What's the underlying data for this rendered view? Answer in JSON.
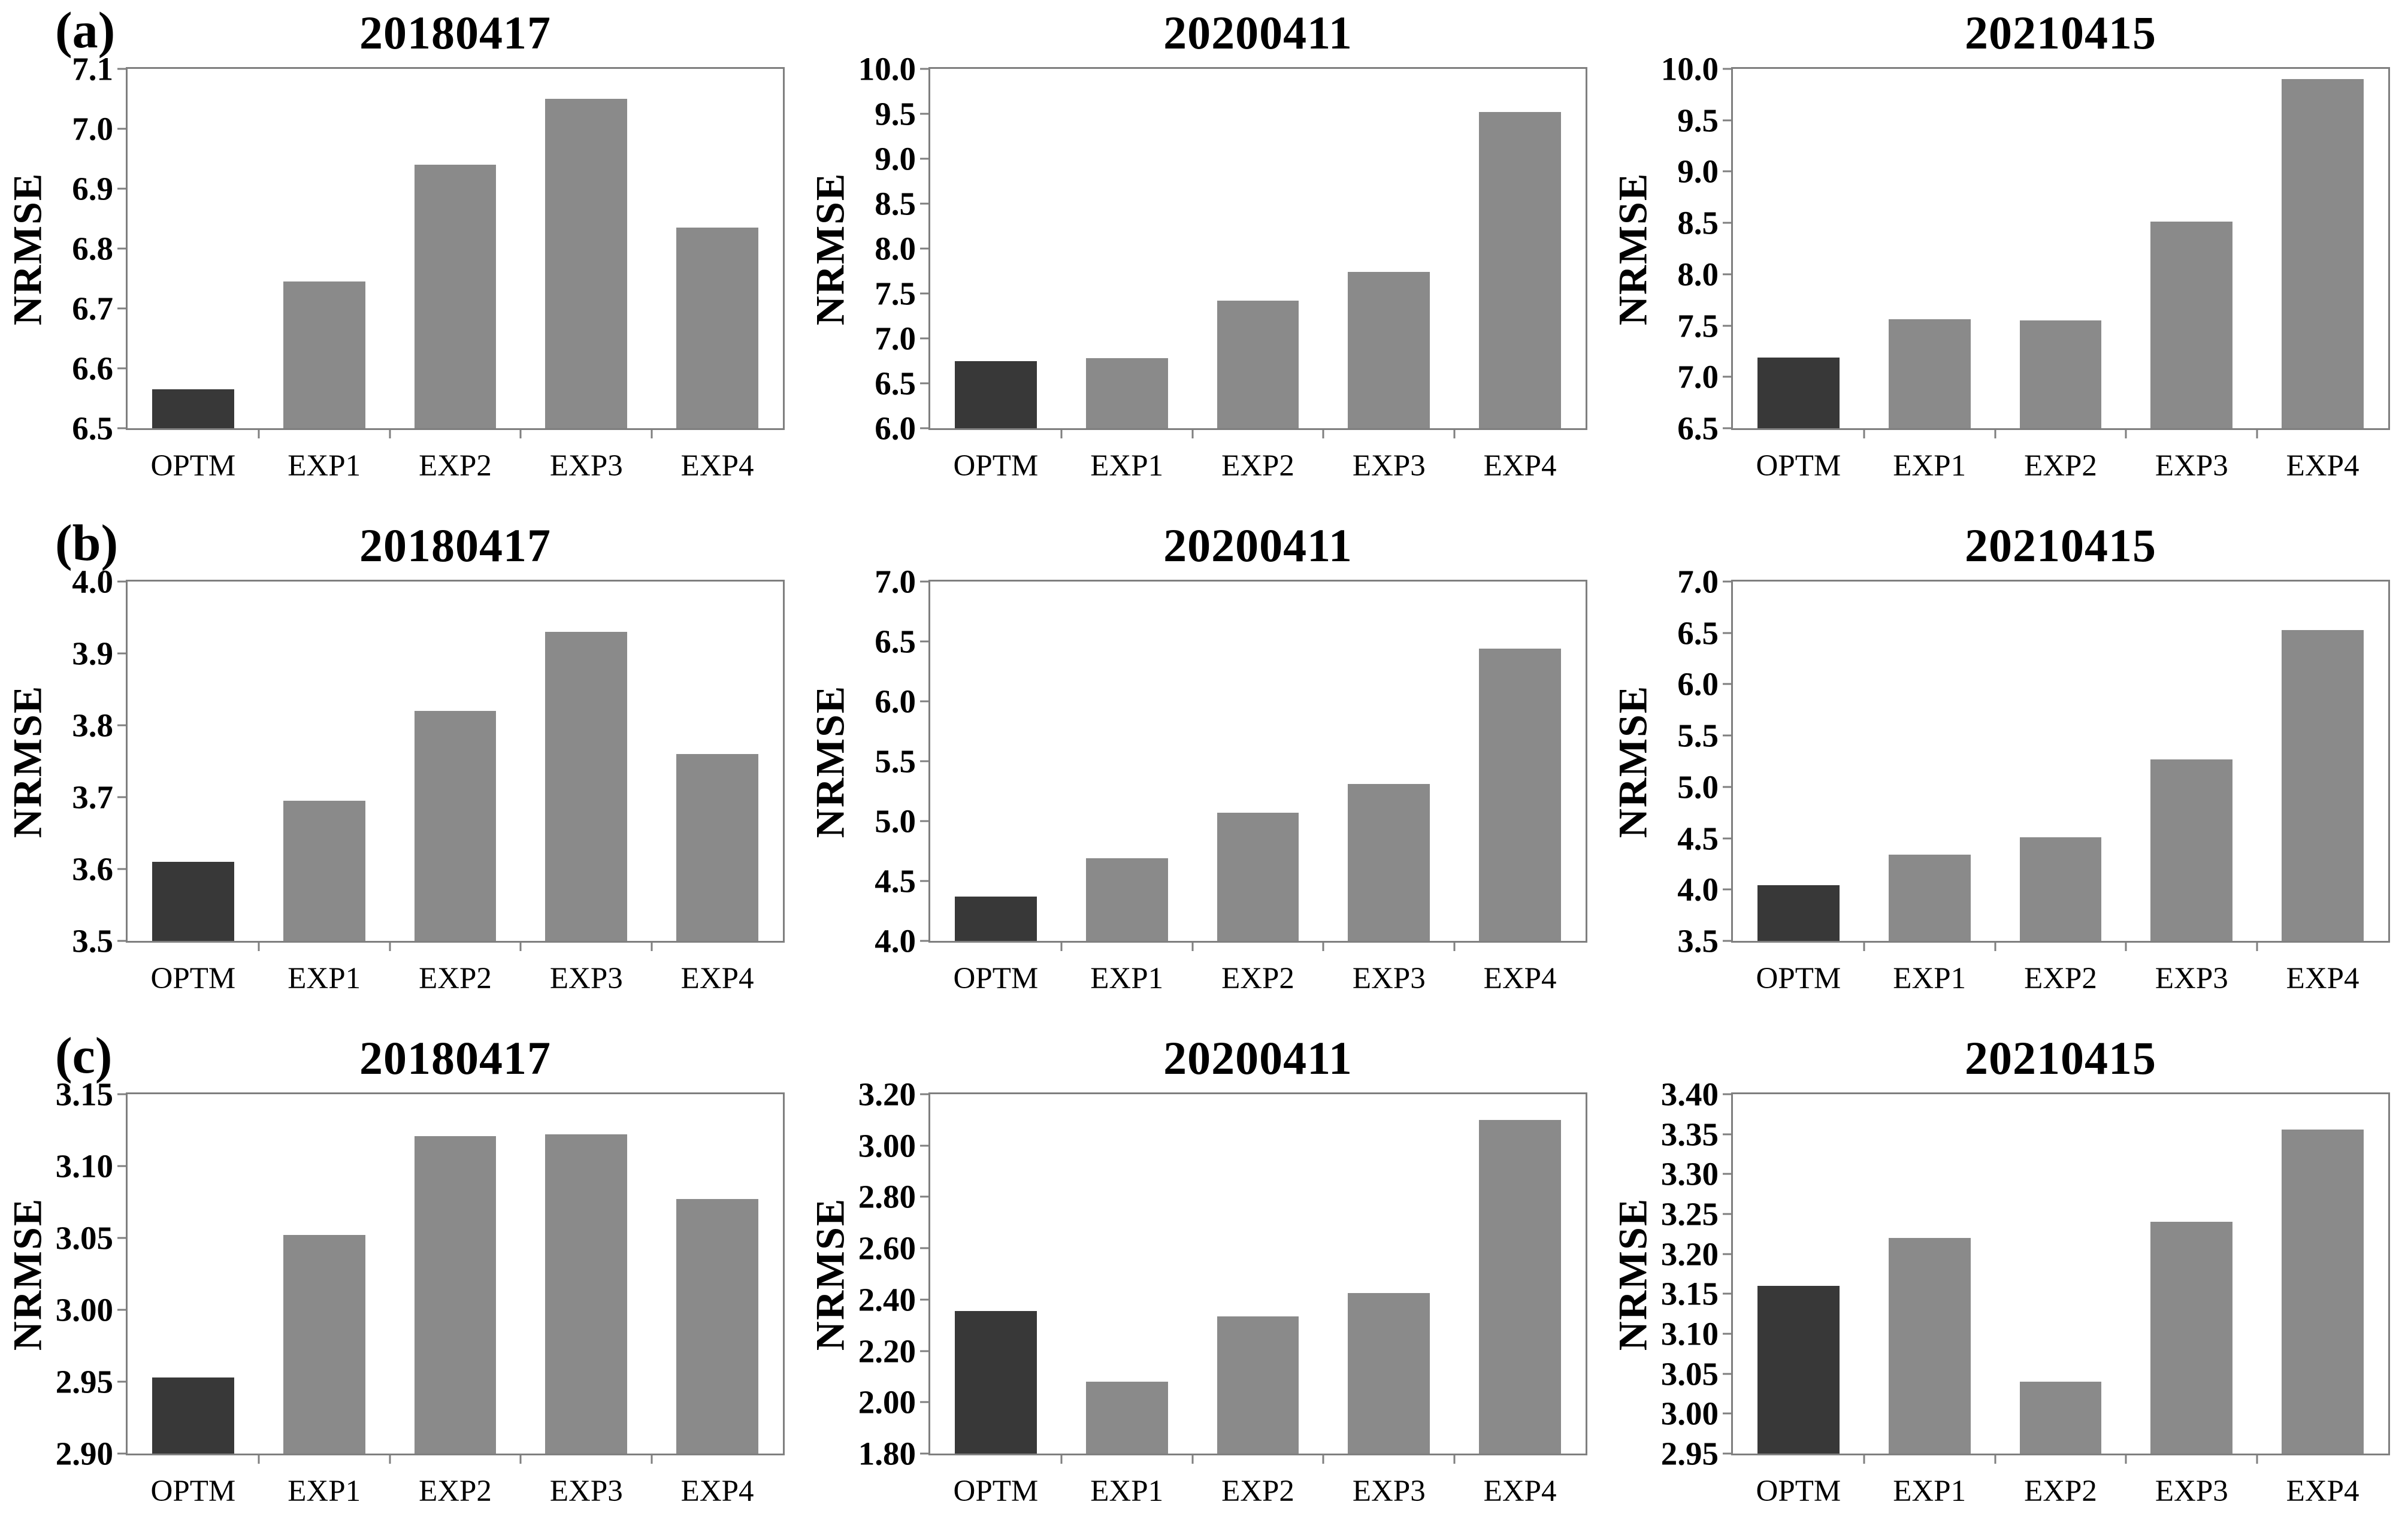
{
  "figure": {
    "background": "#ffffff",
    "ylabel": "NRMSE",
    "categories": [
      "OPTM",
      "EXP1",
      "EXP2",
      "EXP3",
      "EXP4"
    ],
    "row_labels": [
      "(a)",
      "(b)",
      "(c)"
    ]
  },
  "colors": {
    "optm_bar": "#383838",
    "exp_bar": "#8a8a8a",
    "axis": "#7f7f7f",
    "text": "#000000"
  },
  "chart_data": [
    {
      "type": "bar",
      "panel": "(a)",
      "title": "20180417",
      "categories": [
        "OPTM",
        "EXP1",
        "EXP2",
        "EXP3",
        "EXP4"
      ],
      "values": [
        6.565,
        6.745,
        6.94,
        7.05,
        6.835
      ],
      "xlabel": "",
      "ylabel": "NRMSE",
      "ylim": [
        6.5,
        7.1
      ],
      "yticks": [
        "6.5",
        "6.6",
        "6.7",
        "6.8",
        "6.9",
        "7.0",
        "7.1"
      ],
      "grid": false,
      "legend": false
    },
    {
      "type": "bar",
      "panel": "(a)",
      "title": "20200411",
      "categories": [
        "OPTM",
        "EXP1",
        "EXP2",
        "EXP3",
        "EXP4"
      ],
      "values": [
        6.75,
        6.78,
        7.42,
        7.74,
        9.52
      ],
      "xlabel": "",
      "ylabel": "NRMSE",
      "ylim": [
        6.0,
        10.0
      ],
      "yticks": [
        "6.0",
        "6.5",
        "7.0",
        "7.5",
        "8.0",
        "8.5",
        "9.0",
        "9.5",
        "10.0"
      ],
      "grid": false,
      "legend": false
    },
    {
      "type": "bar",
      "panel": "(a)",
      "title": "20210415",
      "categories": [
        "OPTM",
        "EXP1",
        "EXP2",
        "EXP3",
        "EXP4"
      ],
      "values": [
        7.19,
        7.56,
        7.55,
        8.51,
        9.9
      ],
      "xlabel": "",
      "ylabel": "NRMSE",
      "ylim": [
        6.5,
        10.0
      ],
      "yticks": [
        "6.5",
        "7.0",
        "7.5",
        "8.0",
        "8.5",
        "9.0",
        "9.5",
        "10.0"
      ],
      "grid": false,
      "legend": false
    },
    {
      "type": "bar",
      "panel": "(b)",
      "title": "20180417",
      "categories": [
        "OPTM",
        "EXP1",
        "EXP2",
        "EXP3",
        "EXP4"
      ],
      "values": [
        3.61,
        3.695,
        3.82,
        3.93,
        3.76
      ],
      "xlabel": "",
      "ylabel": "NRMSE",
      "ylim": [
        3.5,
        4.0
      ],
      "yticks": [
        "3.5",
        "3.6",
        "3.7",
        "3.8",
        "3.9",
        "4.0"
      ],
      "grid": false,
      "legend": false
    },
    {
      "type": "bar",
      "panel": "(b)",
      "title": "20200411",
      "categories": [
        "OPTM",
        "EXP1",
        "EXP2",
        "EXP3",
        "EXP4"
      ],
      "values": [
        4.37,
        4.69,
        5.07,
        5.31,
        6.44
      ],
      "xlabel": "",
      "ylabel": "NRMSE",
      "ylim": [
        4.0,
        7.0
      ],
      "yticks": [
        "4.0",
        "4.5",
        "5.0",
        "5.5",
        "6.0",
        "6.5",
        "7.0"
      ],
      "grid": false,
      "legend": false
    },
    {
      "type": "bar",
      "panel": "(b)",
      "title": "20210415",
      "categories": [
        "OPTM",
        "EXP1",
        "EXP2",
        "EXP3",
        "EXP4"
      ],
      "values": [
        4.04,
        4.34,
        4.51,
        5.27,
        6.53
      ],
      "xlabel": "",
      "ylabel": "NRMSE",
      "ylim": [
        3.5,
        7.0
      ],
      "yticks": [
        "3.5",
        "4.0",
        "4.5",
        "5.0",
        "5.5",
        "6.0",
        "6.5",
        "7.0"
      ],
      "grid": false,
      "legend": false
    },
    {
      "type": "bar",
      "panel": "(c)",
      "title": "20180417",
      "categories": [
        "OPTM",
        "EXP1",
        "EXP2",
        "EXP3",
        "EXP4"
      ],
      "values": [
        2.953,
        3.052,
        3.121,
        3.122,
        3.077
      ],
      "xlabel": "",
      "ylabel": "NRMSE",
      "ylim": [
        2.9,
        3.15
      ],
      "yticks": [
        "2.90",
        "2.95",
        "3.00",
        "3.05",
        "3.10",
        "3.15"
      ],
      "grid": false,
      "legend": false
    },
    {
      "type": "bar",
      "panel": "(c)",
      "title": "20200411",
      "categories": [
        "OPTM",
        "EXP1",
        "EXP2",
        "EXP3",
        "EXP4"
      ],
      "values": [
        2.355,
        2.08,
        2.335,
        2.425,
        3.1
      ],
      "xlabel": "",
      "ylabel": "NRMSE",
      "ylim": [
        1.8,
        3.2
      ],
      "yticks": [
        "1.80",
        "2.00",
        "2.20",
        "2.40",
        "2.60",
        "2.80",
        "3.00",
        "3.20"
      ],
      "grid": false,
      "legend": false
    },
    {
      "type": "bar",
      "panel": "(c)",
      "title": "20210415",
      "categories": [
        "OPTM",
        "EXP1",
        "EXP2",
        "EXP3",
        "EXP4"
      ],
      "values": [
        3.16,
        3.22,
        3.04,
        3.24,
        3.356
      ],
      "xlabel": "",
      "ylabel": "NRMSE",
      "ylim": [
        2.95,
        3.4
      ],
      "yticks": [
        "2.95",
        "3.00",
        "3.05",
        "3.10",
        "3.15",
        "3.20",
        "3.25",
        "3.30",
        "3.35",
        "3.40"
      ],
      "grid": false,
      "legend": false
    }
  ]
}
